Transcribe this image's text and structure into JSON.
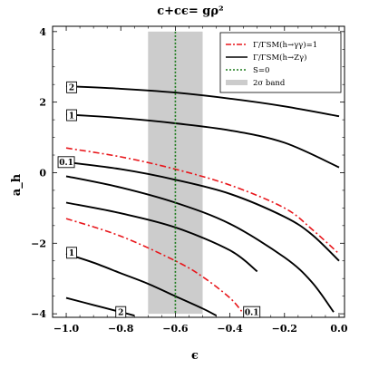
{
  "chart_data": {
    "type": "line",
    "title": "c+cϵ= gρ²",
    "xlabel": "ϵ",
    "ylabel": "a_h",
    "xlim": [
      -1.05,
      0.02
    ],
    "ylim": [
      -4.1,
      4.15
    ],
    "x_ticks": [
      -1.0,
      -0.8,
      -0.6,
      -0.4,
      -0.2,
      0.0
    ],
    "x_tick_labels": [
      "−1.0",
      "−0.8",
      "−0.6",
      "−0.4",
      "−0.2",
      "0.0"
    ],
    "y_ticks": [
      -4,
      -2,
      0,
      2,
      4
    ],
    "y_tick_labels": [
      "−4",
      "−2",
      "0",
      "2",
      "4"
    ],
    "legend_position": "top-right",
    "legend": [
      {
        "label": "Γ/ΓSM(h→γγ)=1",
        "style": "red-dashdot"
      },
      {
        "label": "Γ/ΓSM(h→Zγ)",
        "style": "black-solid"
      },
      {
        "label": "S=0",
        "style": "green-dotted"
      },
      {
        "label": "2σ band",
        "style": "gray-band"
      }
    ],
    "band": {
      "x_range": [
        -0.7,
        -0.5
      ],
      "color": "#cccccc"
    },
    "vline": {
      "x": -0.6,
      "color": "#1a7a1a"
    },
    "series": [
      {
        "label": "2",
        "group": "Zγ",
        "color": "#000000",
        "x": [
          -1.0,
          -0.8,
          -0.6,
          -0.4,
          -0.2,
          0.0
        ],
        "y": [
          2.45,
          2.38,
          2.27,
          2.1,
          1.88,
          1.6
        ]
      },
      {
        "label": "1",
        "group": "Zγ",
        "color": "#000000",
        "x": [
          -1.0,
          -0.8,
          -0.6,
          -0.4,
          -0.2,
          0.0
        ],
        "y": [
          1.65,
          1.55,
          1.4,
          1.2,
          0.85,
          0.15
        ]
      },
      {
        "label": "0.1",
        "group": "Zγ",
        "color": "#000000",
        "x": [
          -1.0,
          -0.8,
          -0.6,
          -0.4,
          -0.2,
          -0.1,
          0.0
        ],
        "y": [
          0.3,
          0.1,
          -0.2,
          -0.6,
          -1.25,
          -1.75,
          -2.5
        ]
      },
      {
        "label": "0.1",
        "group": "Zγ",
        "color": "#000000",
        "x": [
          -1.0,
          -0.8,
          -0.6,
          -0.4,
          -0.3
        ],
        "y": [
          -0.85,
          -1.15,
          -1.55,
          -2.2,
          -2.8
        ]
      },
      {
        "label": "",
        "group": "Zγ",
        "color": "#000000",
        "x": [
          -1.0,
          -0.8,
          -0.6,
          -0.4,
          -0.2,
          -0.1,
          -0.02
        ],
        "y": [
          -0.1,
          -0.42,
          -0.85,
          -1.45,
          -2.4,
          -3.1,
          -3.95
        ]
      },
      {
        "label": "1",
        "group": "Zγ",
        "color": "#000000",
        "x": [
          -1.0,
          -0.9,
          -0.8,
          -0.7,
          -0.6,
          -0.5,
          -0.45
        ],
        "y": [
          -2.3,
          -2.55,
          -2.85,
          -3.15,
          -3.5,
          -3.85,
          -4.05
        ]
      },
      {
        "label": "2",
        "group": "Zγ",
        "color": "#000000",
        "x": [
          -1.0,
          -0.9,
          -0.8,
          -0.75
        ],
        "y": [
          -3.55,
          -3.75,
          -3.95,
          -4.05
        ]
      },
      {
        "label": "",
        "group": "γγ",
        "color": "#e8161b",
        "x": [
          -1.0,
          -0.8,
          -0.6,
          -0.4,
          -0.2,
          -0.1,
          0.0
        ],
        "y": [
          0.7,
          0.45,
          0.1,
          -0.35,
          -1.0,
          -1.6,
          -2.3
        ]
      },
      {
        "label": "",
        "group": "γγ",
        "color": "#e8161b",
        "x": [
          -1.0,
          -0.8,
          -0.6,
          -0.5,
          -0.4,
          -0.35
        ],
        "y": [
          -1.3,
          -1.8,
          -2.5,
          -2.95,
          -3.55,
          -4.0
        ]
      }
    ],
    "contour_labels": [
      {
        "text": "2",
        "x": -0.98,
        "y": 2.42
      },
      {
        "text": "1",
        "x": -0.98,
        "y": 1.63
      },
      {
        "text": "0.1",
        "x": -1.0,
        "y": 0.3
      },
      {
        "text": "1",
        "x": -0.98,
        "y": -2.27
      },
      {
        "text": "2",
        "x": -0.8,
        "y": -3.95
      },
      {
        "text": "0.1",
        "x": -0.32,
        "y": -3.95
      }
    ]
  }
}
